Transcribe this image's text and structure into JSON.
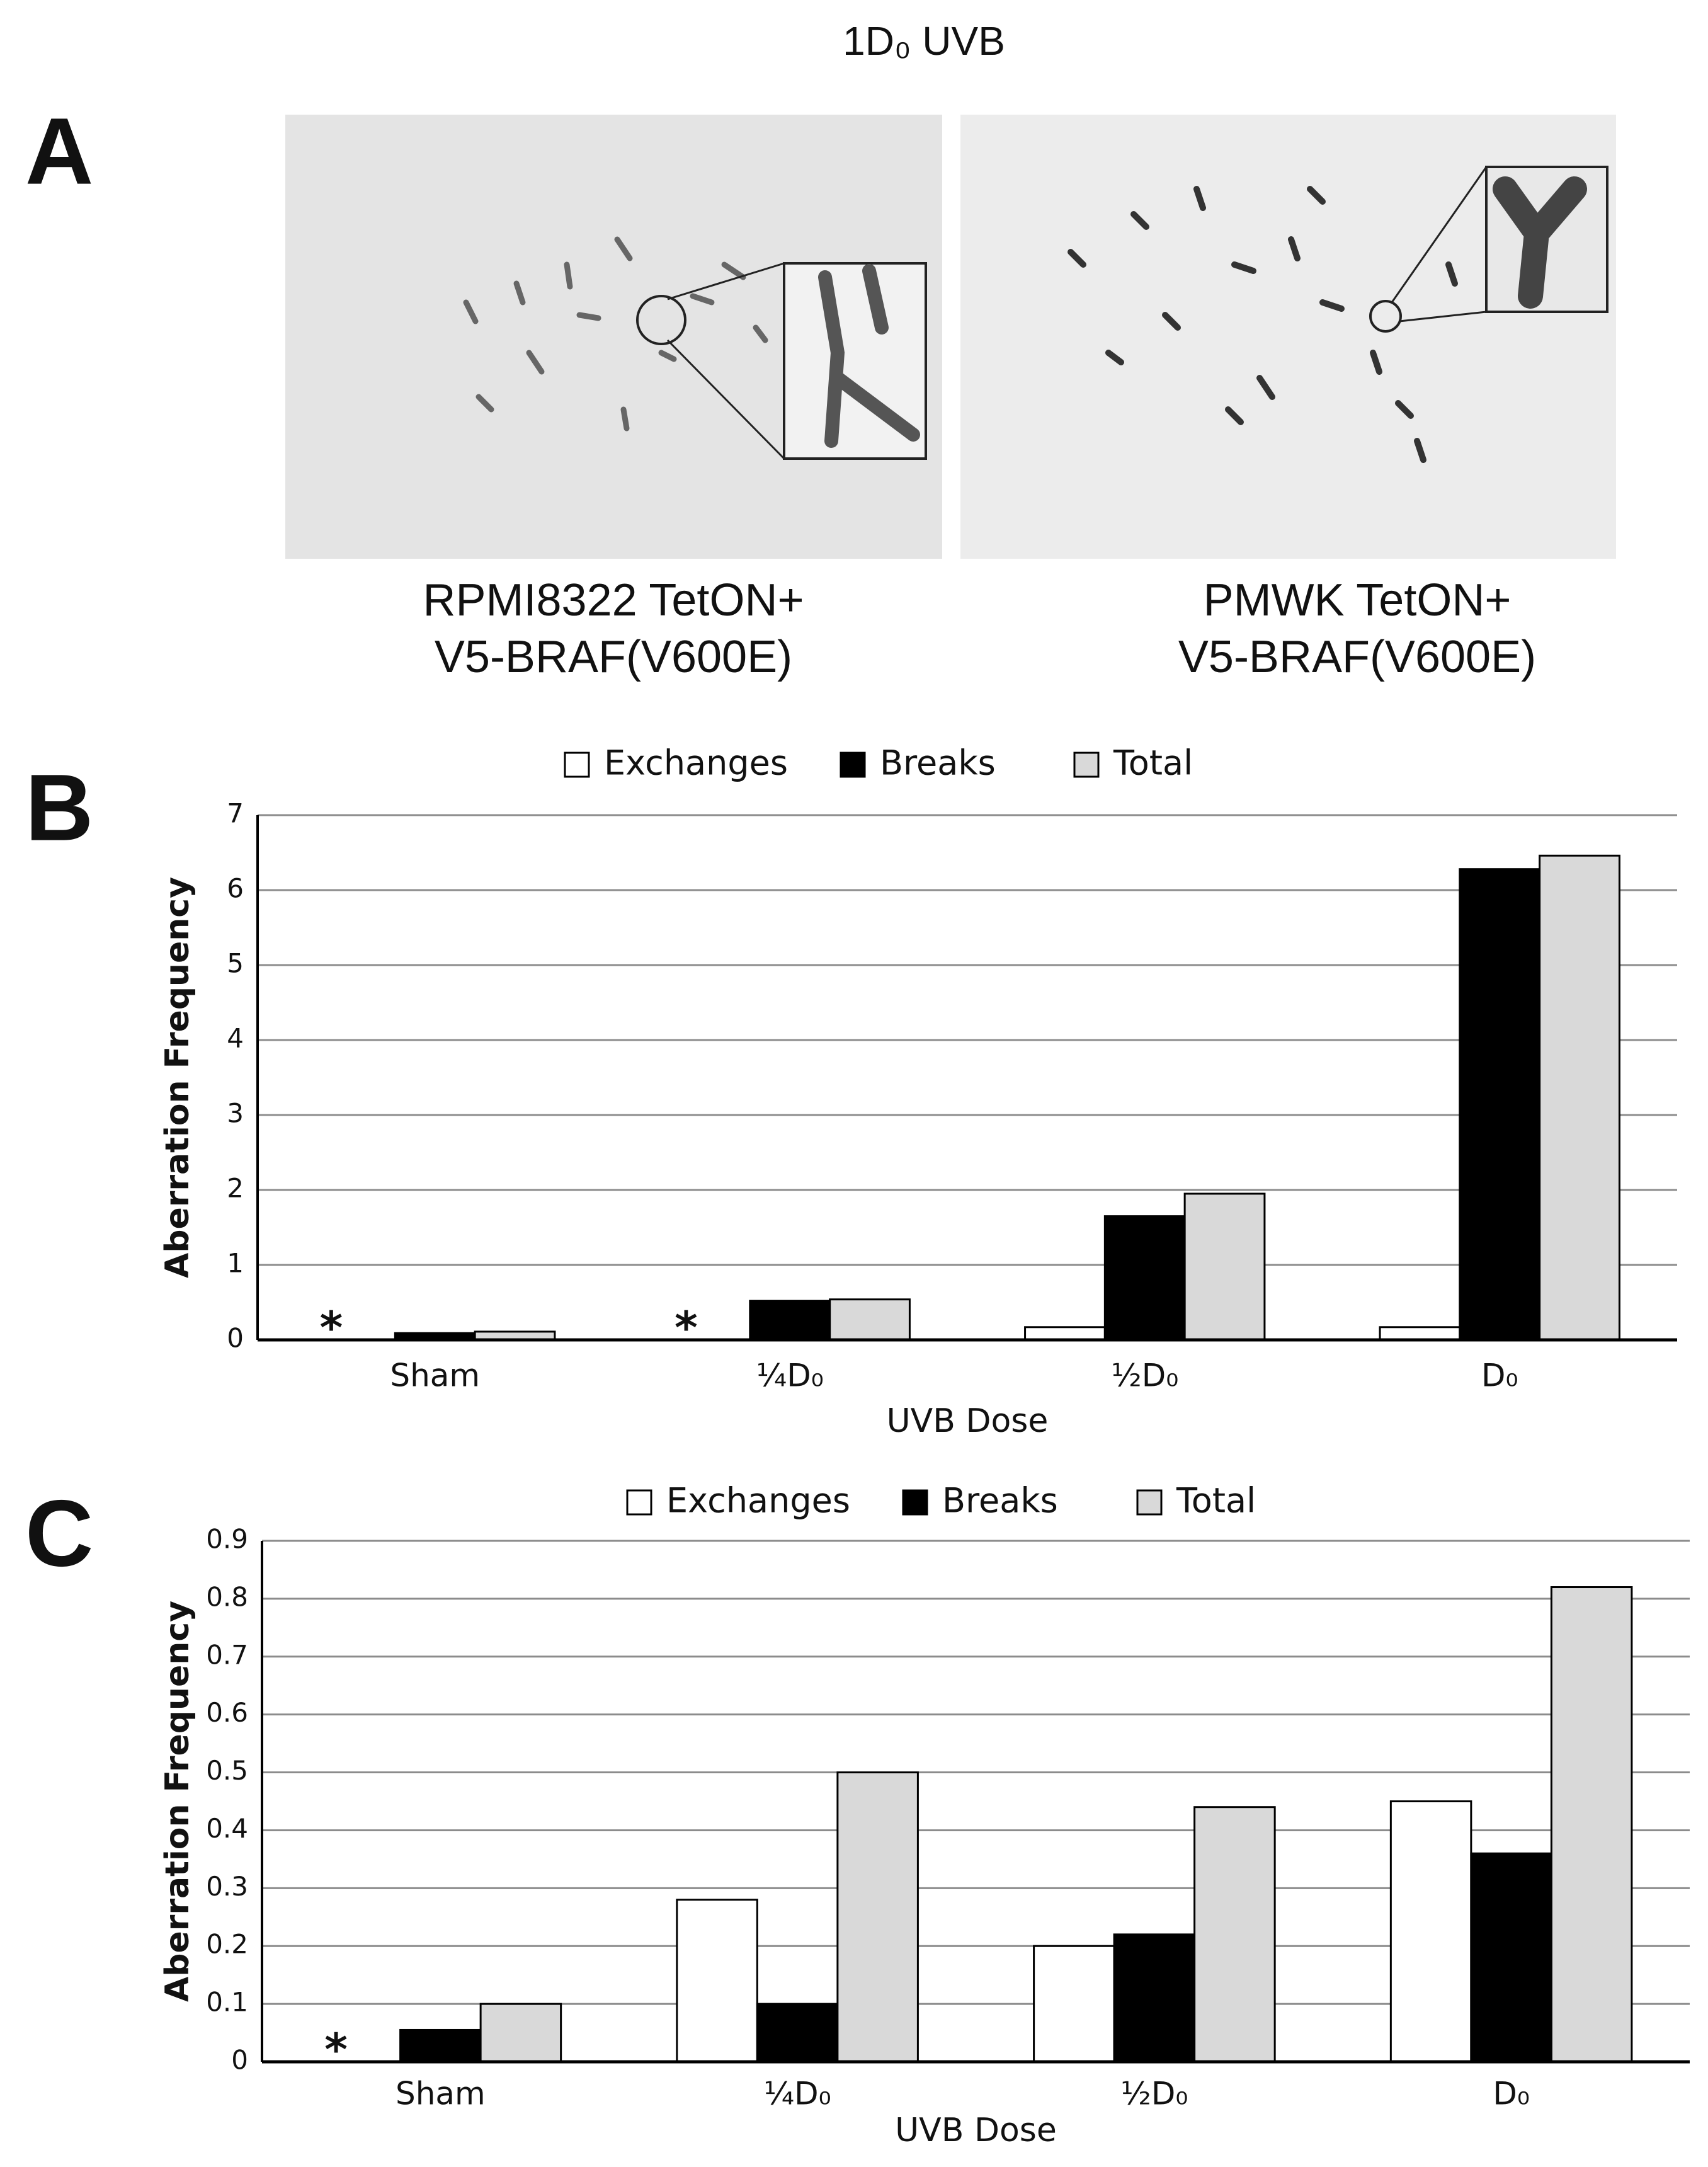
{
  "title": "1D₀ UVB",
  "panel_a": {
    "label": "A",
    "images": [
      {
        "caption": [
          "RPMI8322 TetON+",
          "V5-BRAF(V600E)"
        ]
      },
      {
        "caption": [
          "PMWK TetON+",
          "V5-BRAF(V600E)"
        ]
      }
    ]
  },
  "chart_data": [
    {
      "type": "bar",
      "panel": "B",
      "ylabel": "Aberration Frequency",
      "xlabel": "UVB Dose",
      "categories": [
        "Sham",
        "¼D₀",
        "½D₀",
        "D₀"
      ],
      "series": [
        {
          "name": "Exchanges",
          "color": "#ffffff",
          "values": [
            0,
            0,
            0.17,
            0.17
          ]
        },
        {
          "name": "Breaks",
          "color": "#000000",
          "values": [
            0.09,
            0.52,
            1.65,
            6.28
          ]
        },
        {
          "name": "Total",
          "color": "#d9d9d9",
          "values": [
            0.11,
            0.54,
            1.95,
            6.46
          ]
        }
      ],
      "ylim": [
        0,
        7
      ],
      "yticks": [
        0,
        1,
        2,
        3,
        4,
        5,
        6,
        7
      ],
      "grid": true,
      "annotations": [
        {
          "text": "*",
          "x": "Sham"
        },
        {
          "text": "*",
          "x": "¼D₀"
        }
      ]
    },
    {
      "type": "bar",
      "panel": "C",
      "ylabel": "Aberration Frequency",
      "xlabel": "UVB Dose",
      "categories": [
        "Sham",
        "¼D₀",
        "½D₀",
        "D₀"
      ],
      "series": [
        {
          "name": "Exchanges",
          "color": "#ffffff",
          "values": [
            0,
            0.28,
            0.2,
            0.45
          ]
        },
        {
          "name": "Breaks",
          "color": "#000000",
          "values": [
            0.055,
            0.1,
            0.22,
            0.36
          ]
        },
        {
          "name": "Total",
          "color": "#d9d9d9",
          "values": [
            0.1,
            0.5,
            0.44,
            0.82
          ]
        }
      ],
      "ylim": [
        0,
        0.9
      ],
      "yticks": [
        0,
        0.1,
        0.2,
        0.3,
        0.4,
        0.5,
        0.6,
        0.7,
        0.8,
        0.9
      ],
      "grid": true,
      "annotations": [
        {
          "text": "*",
          "x": "Sham"
        }
      ]
    }
  ]
}
